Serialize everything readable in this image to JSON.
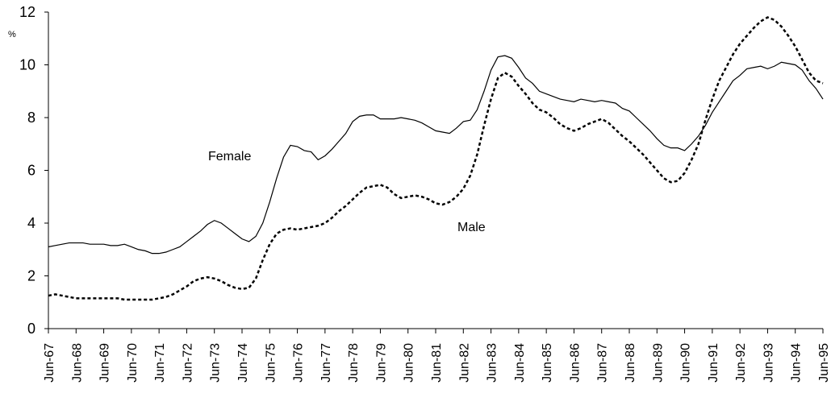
{
  "chart_data": {
    "type": "line",
    "y_unit_label": "%",
    "categories": [
      "Jun-67",
      null,
      null,
      null,
      "Jun-68",
      null,
      null,
      null,
      "Jun-69",
      null,
      null,
      null,
      "Jun-70",
      null,
      null,
      null,
      "Jun-71",
      null,
      null,
      null,
      "Jun-72",
      null,
      null,
      null,
      "Jun-73",
      null,
      null,
      null,
      "Jun-74",
      null,
      null,
      null,
      "Jun-75",
      null,
      null,
      null,
      "Jun-76",
      null,
      null,
      null,
      "Jun-77",
      null,
      null,
      null,
      "Jun-78",
      null,
      null,
      null,
      "Jun-79",
      null,
      null,
      null,
      "Jun-80",
      null,
      null,
      null,
      "Jun-81",
      null,
      null,
      null,
      "Jun-82",
      null,
      null,
      null,
      "Jun-83",
      null,
      null,
      null,
      "Jun-84",
      null,
      null,
      null,
      "Jun-85",
      null,
      null,
      null,
      "Jun-86",
      null,
      null,
      null,
      "Jun-87",
      null,
      null,
      null,
      "Jun-88",
      null,
      null,
      null,
      "Jun-89",
      null,
      null,
      null,
      "Jun-90",
      null,
      null,
      null,
      "Jun-91",
      null,
      null,
      null,
      "Jun-92",
      null,
      null,
      null,
      "Jun-93",
      null,
      null,
      null,
      "Jun-94",
      null,
      null,
      null,
      "Jun-95"
    ],
    "series": [
      {
        "name": "Female",
        "color": "#000000",
        "style": "solid",
        "values": [
          3.1,
          3.15,
          3.2,
          3.25,
          3.25,
          3.25,
          3.2,
          3.2,
          3.2,
          3.15,
          3.15,
          3.2,
          3.1,
          3.0,
          2.95,
          2.85,
          2.85,
          2.9,
          3.0,
          3.1,
          3.3,
          3.5,
          3.7,
          3.95,
          4.1,
          4.0,
          3.8,
          3.6,
          3.4,
          3.3,
          3.5,
          4.0,
          4.8,
          5.7,
          6.5,
          6.95,
          6.9,
          6.75,
          6.7,
          6.4,
          6.55,
          6.8,
          7.1,
          7.4,
          7.85,
          8.05,
          8.1,
          8.1,
          7.95,
          7.95,
          7.95,
          8.0,
          7.95,
          7.9,
          7.8,
          7.65,
          7.5,
          7.45,
          7.4,
          7.6,
          7.85,
          7.9,
          8.3,
          9.0,
          9.8,
          10.3,
          10.35,
          10.25,
          9.9,
          9.5,
          9.3,
          9.0,
          8.9,
          8.8,
          8.7,
          8.65,
          8.6,
          8.7,
          8.65,
          8.6,
          8.65,
          8.6,
          8.55,
          8.35,
          8.25,
          8.0,
          7.75,
          7.5,
          7.2,
          6.95,
          6.85,
          6.85,
          6.75,
          7.0,
          7.3,
          7.7,
          8.2,
          8.6,
          9.0,
          9.4,
          9.6,
          9.85,
          9.9,
          9.95,
          9.85,
          9.95,
          10.1,
          10.05,
          10.0,
          9.8,
          9.4,
          9.1,
          8.7
        ]
      },
      {
        "name": "Male",
        "color": "#000000",
        "style": "dashed",
        "values": [
          1.25,
          1.3,
          1.25,
          1.2,
          1.15,
          1.15,
          1.15,
          1.15,
          1.15,
          1.15,
          1.15,
          1.1,
          1.1,
          1.1,
          1.1,
          1.1,
          1.15,
          1.2,
          1.3,
          1.45,
          1.6,
          1.8,
          1.9,
          1.95,
          1.9,
          1.8,
          1.65,
          1.55,
          1.5,
          1.55,
          1.9,
          2.6,
          3.2,
          3.6,
          3.75,
          3.8,
          3.75,
          3.8,
          3.85,
          3.9,
          4.0,
          4.2,
          4.45,
          4.65,
          4.9,
          5.15,
          5.35,
          5.4,
          5.45,
          5.35,
          5.1,
          4.95,
          5.0,
          5.05,
          5.0,
          4.9,
          4.75,
          4.7,
          4.8,
          5.0,
          5.3,
          5.8,
          6.6,
          7.7,
          8.7,
          9.5,
          9.7,
          9.55,
          9.2,
          8.9,
          8.55,
          8.3,
          8.2,
          8.0,
          7.75,
          7.6,
          7.5,
          7.6,
          7.75,
          7.85,
          7.95,
          7.8,
          7.55,
          7.3,
          7.1,
          6.85,
          6.6,
          6.3,
          6.0,
          5.7,
          5.55,
          5.6,
          5.9,
          6.4,
          7.0,
          7.9,
          8.7,
          9.4,
          9.9,
          10.4,
          10.8,
          11.1,
          11.4,
          11.65,
          11.8,
          11.7,
          11.45,
          11.1,
          10.7,
          10.2,
          9.7,
          9.4,
          9.3
        ]
      }
    ],
    "ylim": [
      0,
      12
    ],
    "yticks": [
      0,
      2,
      4,
      6,
      8,
      10,
      12
    ],
    "grid": false
  }
}
